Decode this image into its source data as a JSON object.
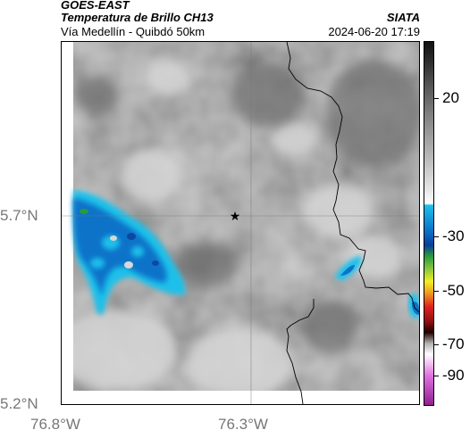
{
  "header": {
    "satellite": "GOES-EAST",
    "product": "Temperatura de Brillo CH13",
    "region": "Vía Medellín - Quibdó 50km",
    "agency": "SIATA",
    "datetime": "2024-06-20 17:19"
  },
  "axes": {
    "lat_labels": [
      "5.7°N",
      "5.2°N"
    ],
    "lon_labels": [
      "76.8°W",
      "76.3°W"
    ]
  },
  "colorbar": {
    "ticks": [
      "20",
      "-30",
      "-50",
      "-70",
      "-90"
    ]
  },
  "colors": {
    "cold_cloud": "#0a73c9",
    "cyan": "#1fc0ea",
    "border": "#000000"
  },
  "icons": {
    "marker": "star-icon"
  }
}
